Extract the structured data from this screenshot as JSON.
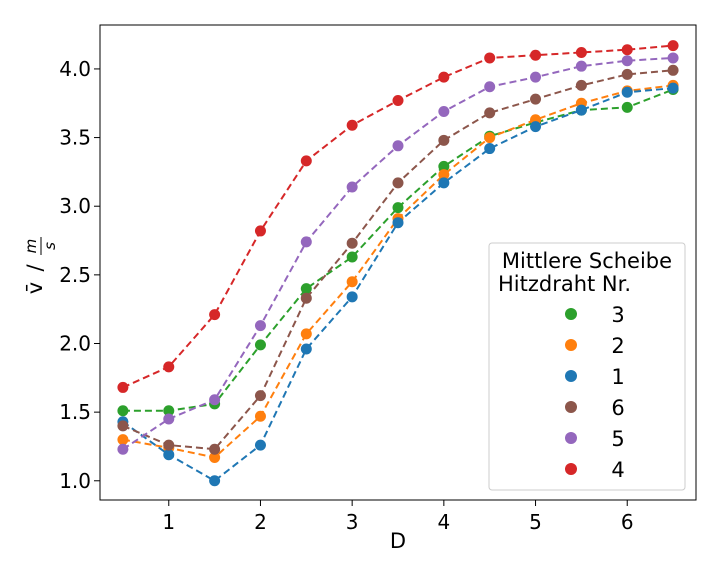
{
  "chart_data": {
    "type": "line",
    "title": "",
    "xlabel": "D",
    "ylabel_main": "v̄",
    "ylabel_sep": "/",
    "ylabel_unit_num": "m",
    "ylabel_unit_den": "s",
    "xlim": [
      0.25,
      6.75
    ],
    "ylim": [
      0.86,
      4.32
    ],
    "xticks": [
      1,
      2,
      3,
      4,
      5,
      6
    ],
    "yticks": [
      1.0,
      1.5,
      2.0,
      2.5,
      3.0,
      3.5,
      4.0
    ],
    "grid": false,
    "marker": "circle",
    "linestyle": "dashed",
    "x": [
      0.5,
      1.0,
      1.5,
      2.0,
      2.5,
      3.0,
      3.5,
      4.0,
      4.5,
      5.0,
      5.5,
      6.0,
      6.5
    ],
    "legend": {
      "title_line1": "Mittlere Scheibe",
      "title_line2": "Hitzdraht Nr.",
      "location": "center-right"
    },
    "series": [
      {
        "name": "3",
        "color": "#2ca02c",
        "values": [
          1.51,
          1.51,
          1.56,
          1.99,
          2.4,
          2.63,
          2.99,
          3.29,
          3.51,
          3.61,
          3.7,
          3.72,
          3.85
        ]
      },
      {
        "name": "2",
        "color": "#ff7f0e",
        "values": [
          1.3,
          1.24,
          1.17,
          1.47,
          2.07,
          2.45,
          2.91,
          3.23,
          3.5,
          3.63,
          3.75,
          3.84,
          3.88
        ]
      },
      {
        "name": "1",
        "color": "#1f77b4",
        "values": [
          1.43,
          1.19,
          1.0,
          1.26,
          1.96,
          2.34,
          2.88,
          3.17,
          3.42,
          3.58,
          3.7,
          3.83,
          3.86
        ]
      },
      {
        "name": "6",
        "color": "#8c564b",
        "values": [
          1.4,
          1.26,
          1.23,
          1.62,
          2.33,
          2.73,
          3.17,
          3.48,
          3.68,
          3.78,
          3.88,
          3.96,
          3.99
        ]
      },
      {
        "name": "5",
        "color": "#9467bd",
        "values": [
          1.23,
          1.45,
          1.59,
          2.13,
          2.74,
          3.14,
          3.44,
          3.69,
          3.87,
          3.94,
          4.02,
          4.06,
          4.08
        ]
      },
      {
        "name": "4",
        "color": "#d62728",
        "values": [
          1.68,
          1.83,
          2.21,
          2.82,
          3.33,
          3.59,
          3.77,
          3.94,
          4.08,
          4.1,
          4.12,
          4.14,
          4.17
        ]
      }
    ]
  }
}
